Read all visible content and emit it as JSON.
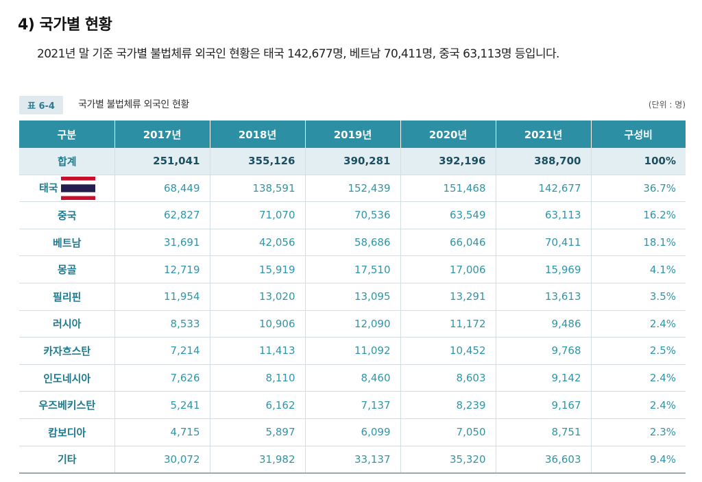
{
  "heading": "4) 국가별 현황",
  "summary": "2021년 말 기준 국가별 불법체류 외국인 현황은 태국 142,677명, 베트남 70,411명, 중국 63,113명 등입니다.",
  "caption": {
    "tag": "표 6-4",
    "title": "국가별 불법체류 외국인 현황",
    "unit": "(단위 : 명)"
  },
  "table": {
    "headers": [
      "구분",
      "2017년",
      "2018년",
      "2019년",
      "2020년",
      "2021년",
      "구성비"
    ],
    "total": [
      "합계",
      "251,041",
      "355,126",
      "390,281",
      "392,196",
      "388,700",
      "100%"
    ],
    "rows": [
      [
        "태국",
        "68,449",
        "138,591",
        "152,439",
        "151,468",
        "142,677",
        "36.7%"
      ],
      [
        "중국",
        "62,827",
        "71,070",
        "70,536",
        "63,549",
        "63,113",
        "16.2%"
      ],
      [
        "베트남",
        "31,691",
        "42,056",
        "58,686",
        "66,046",
        "70,411",
        "18.1%"
      ],
      [
        "몽골",
        "12,719",
        "15,919",
        "17,510",
        "17,006",
        "15,969",
        "4.1%"
      ],
      [
        "필리핀",
        "11,954",
        "13,020",
        "13,095",
        "13,291",
        "13,613",
        "3.5%"
      ],
      [
        "러시아",
        "8,533",
        "10,906",
        "12,090",
        "11,172",
        "9,486",
        "2.4%"
      ],
      [
        "카자흐스탄",
        "7,214",
        "11,413",
        "11,092",
        "10,452",
        "9,768",
        "2.5%"
      ],
      [
        "인도네시아",
        "7,626",
        "8,110",
        "8,460",
        "8,603",
        "9,142",
        "2.4%"
      ],
      [
        "우즈베키스탄",
        "5,241",
        "6,162",
        "7,137",
        "8,239",
        "9,167",
        "2.4%"
      ],
      [
        "캄보디아",
        "4,715",
        "5,897",
        "6,099",
        "7,050",
        "8,751",
        "2.3%"
      ],
      [
        "기타",
        "30,072",
        "31,982",
        "33,137",
        "35,320",
        "36,603",
        "9.4%"
      ]
    ]
  },
  "icons": {
    "flag": "thailand-flag-icon"
  },
  "colors": {
    "header_bg": "#2d8fa3",
    "total_bg": "#e3eef3",
    "accent_text": "#2f95a8"
  }
}
